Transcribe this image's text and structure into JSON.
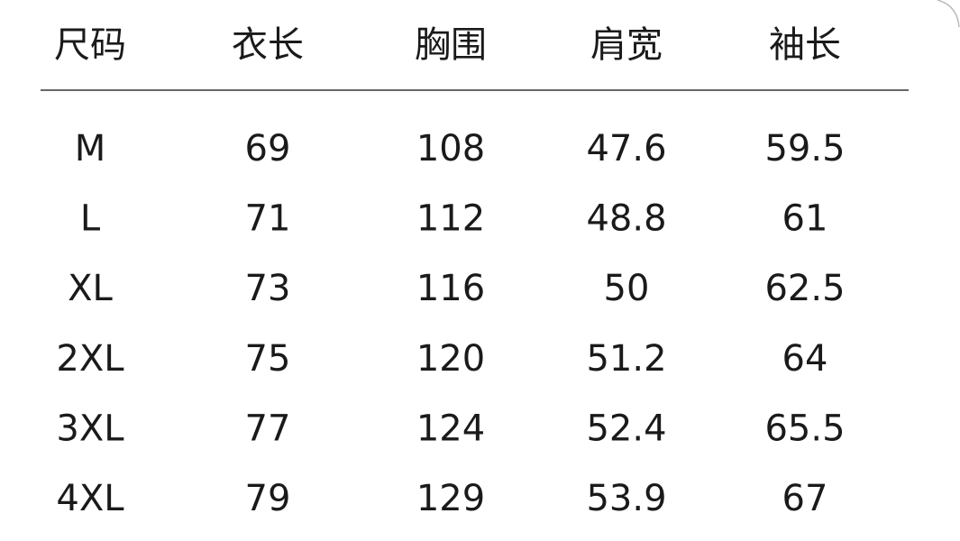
{
  "table": {
    "header": [
      "尺码",
      "衣长",
      "胸围",
      "肩宽",
      "袖长"
    ],
    "rows": [
      [
        "M",
        "69",
        "108",
        "47.6",
        "59.5"
      ],
      [
        "L",
        "71",
        "112",
        "48.8",
        "61"
      ],
      [
        "XL",
        "73",
        "116",
        "50",
        "62.5"
      ],
      [
        "2XL",
        "75",
        "120",
        "51.2",
        "64"
      ],
      [
        "3XL",
        "77",
        "124",
        "52.4",
        "65.5"
      ],
      [
        "4XL",
        "79",
        "129",
        "53.9",
        "67"
      ]
    ]
  }
}
